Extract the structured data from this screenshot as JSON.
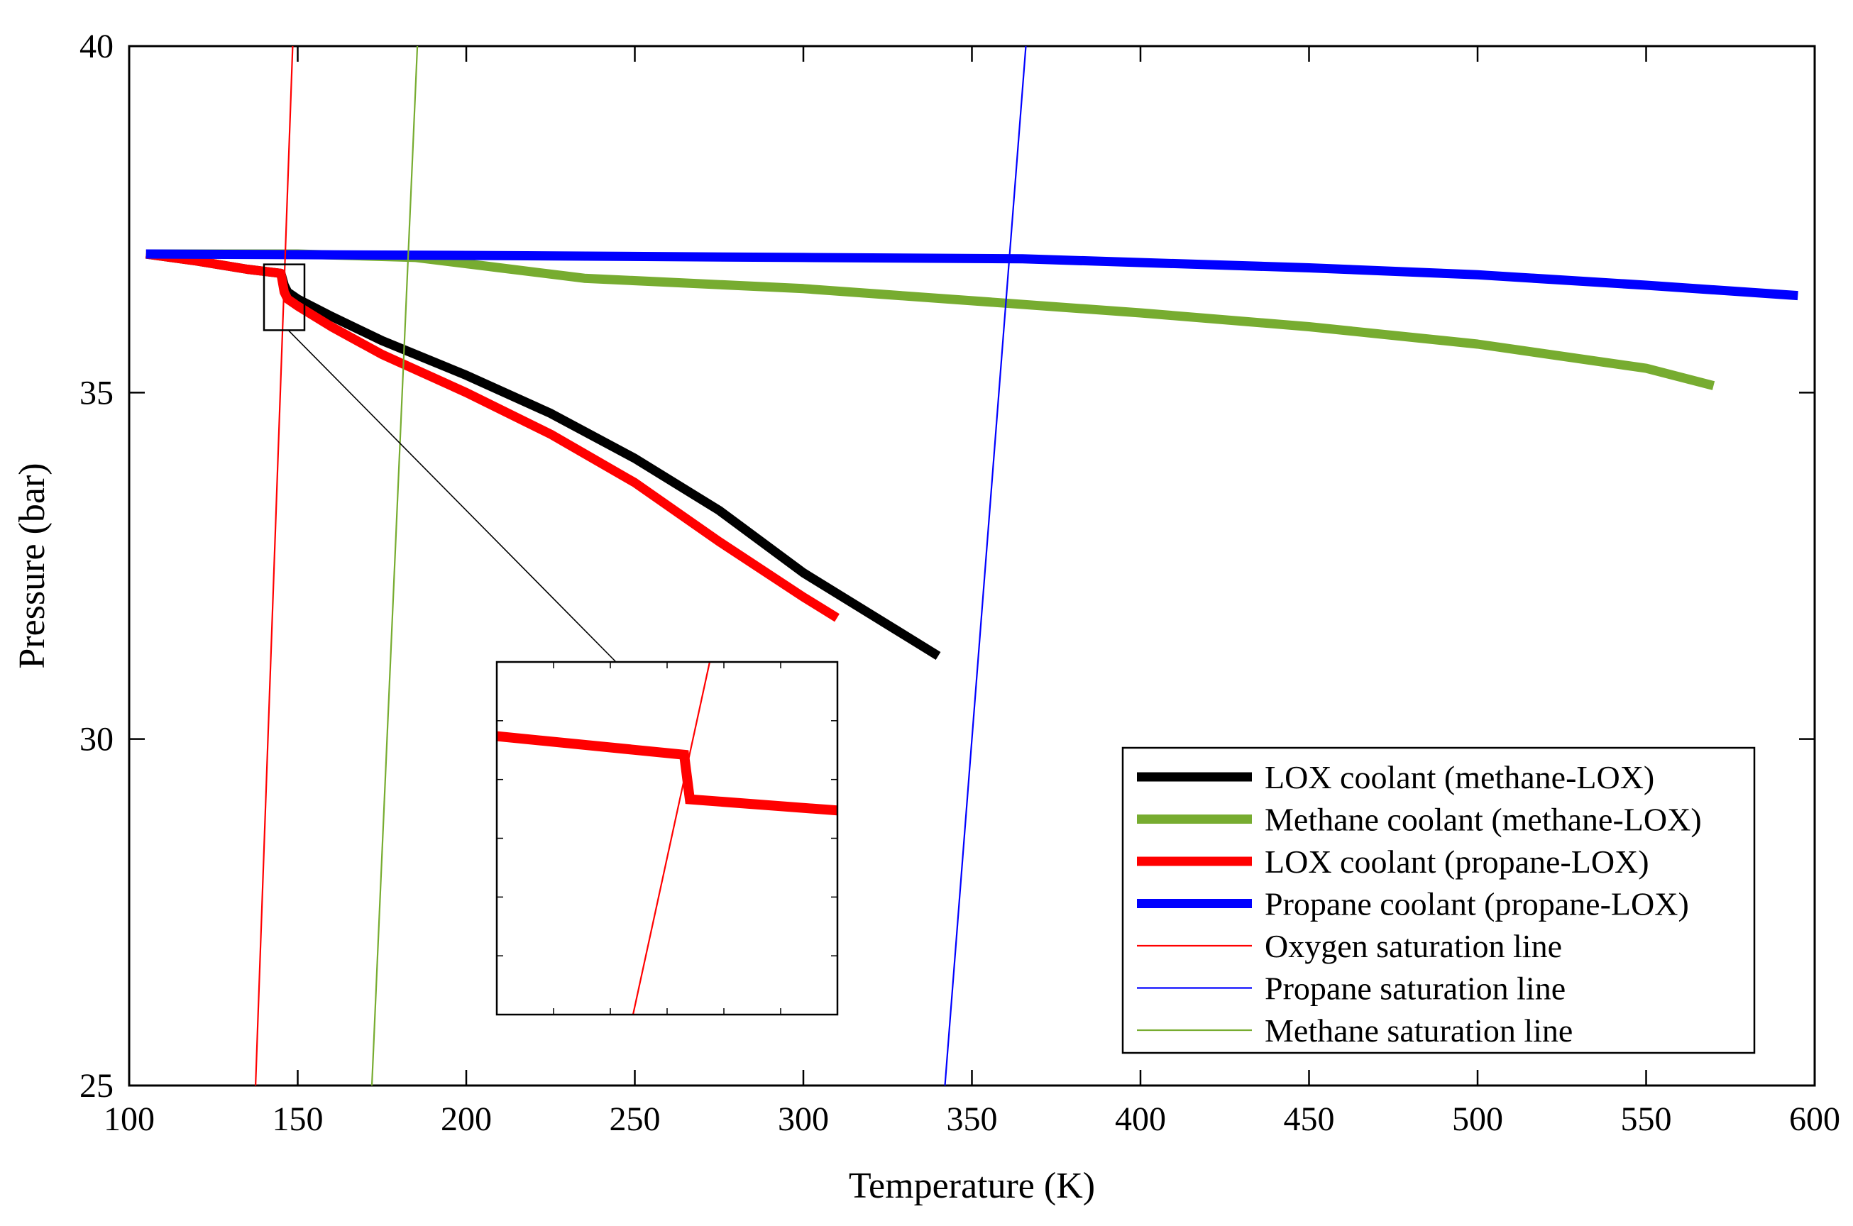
{
  "chart_data": {
    "type": "line",
    "title": "",
    "xlabel": "Temperature (K)",
    "ylabel": "Pressure (bar)",
    "xlim": [
      100,
      600
    ],
    "ylim": [
      25,
      40
    ],
    "xticks": [
      100,
      150,
      200,
      250,
      300,
      350,
      400,
      450,
      500,
      550,
      600
    ],
    "yticks": [
      25,
      30,
      35,
      40
    ],
    "grid": false,
    "legend_position": "bottom-right",
    "series": [
      {
        "name": "LOX coolant (methane-LOX)",
        "color": "#000000",
        "style": "thick",
        "x": [
          105,
          120,
          135,
          145,
          146,
          147,
          150,
          160,
          175,
          200,
          225,
          250,
          275,
          300,
          320,
          340
        ],
        "y": [
          37.0,
          36.9,
          36.78,
          36.72,
          36.55,
          36.45,
          36.35,
          36.1,
          35.75,
          35.25,
          34.7,
          34.05,
          33.3,
          32.4,
          31.8,
          31.2
        ]
      },
      {
        "name": "Methane coolant (methane-LOX)",
        "color": "#77ac30",
        "style": "thick",
        "x": [
          105,
          150,
          185,
          210,
          235,
          300,
          400,
          450,
          500,
          550,
          570
        ],
        "y": [
          37.0,
          37.0,
          36.95,
          36.8,
          36.65,
          36.5,
          36.15,
          35.95,
          35.7,
          35.35,
          35.1
        ]
      },
      {
        "name": "LOX coolant (propane-LOX)",
        "color": "#ff0000",
        "style": "thick",
        "x": [
          105,
          120,
          135,
          145,
          146,
          147,
          150,
          160,
          175,
          200,
          225,
          250,
          275,
          300,
          310
        ],
        "y": [
          37.0,
          36.9,
          36.78,
          36.72,
          36.45,
          36.35,
          36.25,
          35.95,
          35.55,
          35.0,
          34.4,
          33.7,
          32.85,
          32.05,
          31.75
        ]
      },
      {
        "name": "Propane coolant (propane-LOX)",
        "color": "#0000ff",
        "style": "thick",
        "x": [
          105,
          200,
          300,
          365,
          450,
          500,
          550,
          595
        ],
        "y": [
          37.0,
          36.98,
          36.95,
          36.93,
          36.8,
          36.7,
          36.55,
          36.4
        ]
      },
      {
        "name": "Oxygen saturation line",
        "color": "#ff0000",
        "style": "thin",
        "x": [
          137.5,
          148.5
        ],
        "y": [
          25,
          40
        ]
      },
      {
        "name": "Propane saturation line",
        "color": "#0000ff",
        "style": "thin",
        "x": [
          342,
          366
        ],
        "y": [
          25,
          40
        ]
      },
      {
        "name": "Methane saturation line",
        "color": "#77ac30",
        "style": "thin",
        "x": [
          172,
          185.5
        ],
        "y": [
          25,
          40
        ]
      }
    ],
    "inset": {
      "zoom_x": [
        140,
        152
      ],
      "zoom_y": [
        35.9,
        36.85
      ],
      "series": [
        {
          "name": "LOX coolant (propane-LOX)",
          "color": "#ff0000",
          "style": "thick",
          "x": [
            140,
            146.6,
            146.8,
            152
          ],
          "y": [
            36.65,
            36.6,
            36.48,
            36.45
          ]
        },
        {
          "name": "Oxygen saturation line",
          "color": "#ff0000",
          "style": "thin",
          "x": [
            144.8,
            147.5
          ],
          "y": [
            35.9,
            36.85
          ]
        }
      ]
    }
  }
}
